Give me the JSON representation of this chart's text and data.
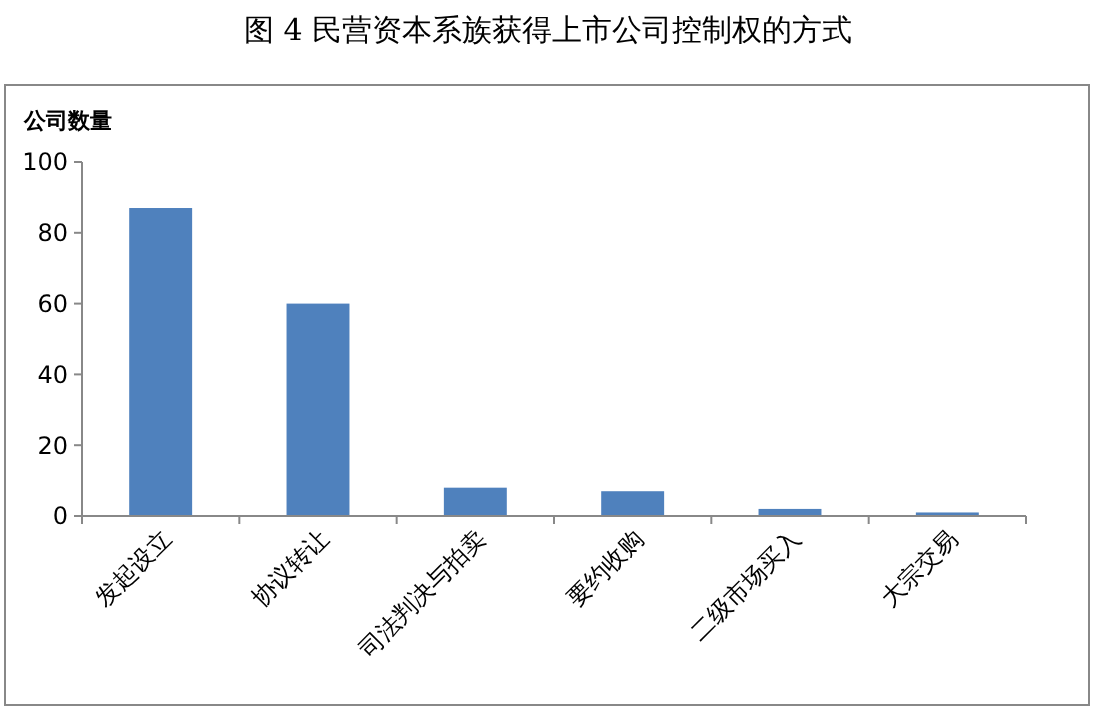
{
  "chart_data": {
    "type": "bar",
    "title": "图 4  民营资本系族获得上市公司控制权的方式",
    "ylabel": "公司数量",
    "categories": [
      "发起设立",
      "协议转让",
      "司法判决与拍卖",
      "要约收购",
      "二级市场买入",
      "大宗交易"
    ],
    "values": [
      87,
      60,
      8,
      7,
      2,
      1
    ],
    "color": "#4f81bd",
    "ylim": [
      0,
      100
    ],
    "yticks": [
      0,
      20,
      40,
      60,
      80,
      100
    ],
    "grid": false
  }
}
